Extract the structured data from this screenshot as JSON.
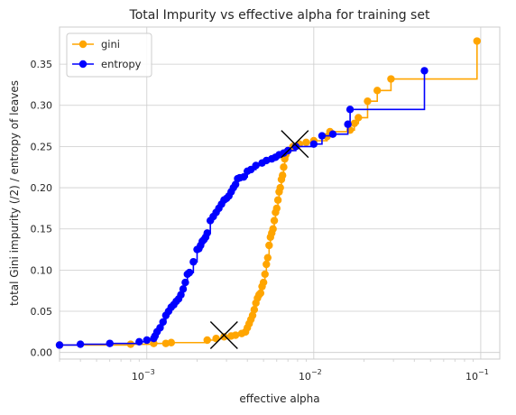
{
  "chart_data": {
    "type": "line",
    "title": "Total Impurity vs effective alpha for training set",
    "xlabel": "effective alpha",
    "ylabel": "total Gini impurity (/2) / entropy of leaves",
    "xscale": "log",
    "xlim": [
      0.0003,
      0.13
    ],
    "ylim": [
      -0.008,
      0.395
    ],
    "xticks": [
      0.001,
      0.01,
      0.1
    ],
    "xtick_labels": [
      {
        "base": "10",
        "exp": "−3"
      },
      {
        "base": "10",
        "exp": "−2"
      },
      {
        "base": "10",
        "exp": "−1"
      }
    ],
    "yticks": [
      0.0,
      0.05,
      0.1,
      0.15,
      0.2,
      0.25,
      0.3,
      0.35
    ],
    "ytick_labels": [
      "0.00",
      "0.05",
      "0.10",
      "0.15",
      "0.20",
      "0.25",
      "0.30",
      "0.35"
    ],
    "grid": true,
    "legend_position": "top-left",
    "drawstyle": "steps-post",
    "series": [
      {
        "name": "gini",
        "color": "#ffa500",
        "x": [
          0.0003,
          0.0008,
          0.0011,
          0.0013,
          0.0014,
          0.0023,
          0.0026,
          0.0029,
          0.0032,
          0.0034,
          0.0037,
          0.0039,
          0.004,
          0.0041,
          0.0042,
          0.0043,
          0.0044,
          0.0045,
          0.0046,
          0.0047,
          0.0048,
          0.0049,
          0.005,
          0.0051,
          0.0052,
          0.0053,
          0.0054,
          0.0055,
          0.0056,
          0.0057,
          0.0058,
          0.0059,
          0.006,
          0.0061,
          0.0062,
          0.0063,
          0.0064,
          0.0065,
          0.0066,
          0.0067,
          0.0068,
          0.007,
          0.0075,
          0.0082,
          0.009,
          0.01,
          0.012,
          0.0125,
          0.0165,
          0.0175,
          0.0185,
          0.021,
          0.024,
          0.029,
          0.095
        ],
        "y": [
          0.009,
          0.01,
          0.011,
          0.011,
          0.012,
          0.015,
          0.017,
          0.019,
          0.02,
          0.021,
          0.023,
          0.025,
          0.03,
          0.035,
          0.04,
          0.045,
          0.052,
          0.06,
          0.066,
          0.07,
          0.072,
          0.08,
          0.085,
          0.095,
          0.107,
          0.115,
          0.13,
          0.14,
          0.145,
          0.15,
          0.16,
          0.17,
          0.175,
          0.185,
          0.195,
          0.2,
          0.21,
          0.215,
          0.225,
          0.235,
          0.24,
          0.245,
          0.25,
          0.253,
          0.255,
          0.257,
          0.262,
          0.268,
          0.27,
          0.278,
          0.285,
          0.305,
          0.318,
          0.332,
          0.378
        ]
      },
      {
        "name": "entropy",
        "color": "#0000ff",
        "x": [
          0.0003,
          0.0004,
          0.0006,
          0.0009,
          0.001,
          0.0011,
          0.00112,
          0.00115,
          0.0012,
          0.00125,
          0.0013,
          0.00135,
          0.0014,
          0.00145,
          0.0015,
          0.00155,
          0.0016,
          0.00165,
          0.0017,
          0.00175,
          0.0018,
          0.0019,
          0.002,
          0.00205,
          0.0021,
          0.00215,
          0.0022,
          0.00225,
          0.0023,
          0.0024,
          0.0025,
          0.0026,
          0.0027,
          0.0028,
          0.0029,
          0.003,
          0.0031,
          0.0032,
          0.0033,
          0.0034,
          0.0035,
          0.0036,
          0.0038,
          0.004,
          0.0042,
          0.0045,
          0.0049,
          0.0052,
          0.0056,
          0.0059,
          0.0062,
          0.0066,
          0.007,
          0.0078,
          0.01,
          0.0112,
          0.013,
          0.016,
          0.0165,
          0.046
        ],
        "y": [
          0.009,
          0.01,
          0.011,
          0.013,
          0.015,
          0.017,
          0.02,
          0.025,
          0.03,
          0.037,
          0.045,
          0.05,
          0.055,
          0.058,
          0.062,
          0.065,
          0.07,
          0.077,
          0.085,
          0.095,
          0.097,
          0.11,
          0.125,
          0.126,
          0.13,
          0.135,
          0.137,
          0.14,
          0.145,
          0.16,
          0.165,
          0.17,
          0.175,
          0.18,
          0.185,
          0.187,
          0.19,
          0.195,
          0.2,
          0.204,
          0.211,
          0.212,
          0.213,
          0.22,
          0.222,
          0.227,
          0.23,
          0.233,
          0.235,
          0.237,
          0.24,
          0.242,
          0.245,
          0.25,
          0.253,
          0.263,
          0.265,
          0.277,
          0.295,
          0.342
        ]
      }
    ],
    "markers": [
      {
        "x": 0.0029,
        "y": 0.021,
        "color": "#000000"
      },
      {
        "x": 0.0077,
        "y": 0.253,
        "color": "#000000"
      }
    ]
  }
}
